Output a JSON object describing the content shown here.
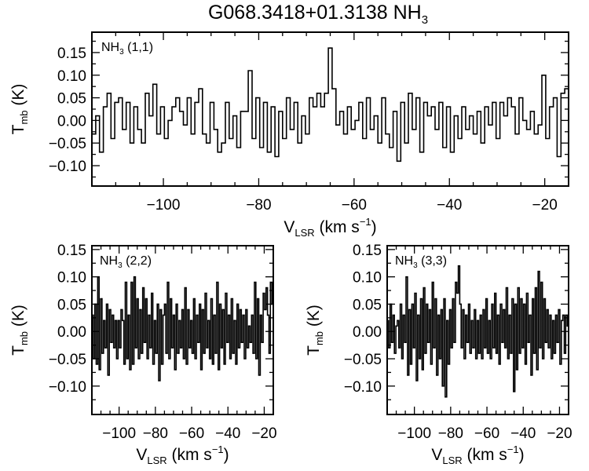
{
  "title": {
    "main": "G068.3418+01.3138 NH",
    "sub": "3"
  },
  "chart_data": [
    {
      "type": "line",
      "style": "histogram-step",
      "panel_label": {
        "main": "NH",
        "sub": "3",
        "rest": " (1,1)"
      },
      "xlabel": {
        "main": "V",
        "sub": "LSR",
        "rest": " (km s",
        "sup": "−1",
        "end": ")"
      },
      "ylabel": {
        "main": "T",
        "sub": "mb",
        "rest": " (K)"
      },
      "xlim": [
        -115,
        -15
      ],
      "ylim": [
        -0.145,
        0.195
      ],
      "xticks": [
        -100,
        -80,
        -60,
        -40,
        -20
      ],
      "xtick_labels": [
        "−100",
        "−80",
        "−60",
        "−40",
        "−20"
      ],
      "yticks": [
        0.15,
        0.1,
        0.05,
        0.0,
        -0.05,
        -0.1
      ],
      "ytick_labels": [
        "0.15",
        "0.10",
        "0.05",
        "0.00",
        "−0.05",
        "−0.10"
      ],
      "x_start": -115,
      "x_step": 0.8,
      "values": [
        -0.03,
        0.01,
        -0.07,
        0.03,
        0.06,
        -0.04,
        0.04,
        0.05,
        -0.02,
        0.04,
        -0.05,
        0.03,
        -0.02,
        -0.05,
        0.06,
        0.01,
        0.08,
        -0.03,
        0.03,
        -0.04,
        0.0,
        0.03,
        0.05,
        0.02,
        -0.01,
        0.05,
        -0.03,
        0.04,
        0.07,
        -0.03,
        -0.05,
        0.04,
        -0.02,
        -0.07,
        -0.05,
        0.04,
        -0.04,
        0.01,
        -0.06,
        0.02,
        0.02,
        0.11,
        -0.04,
        0.05,
        -0.06,
        0.04,
        -0.07,
        0.03,
        -0.08,
        0.02,
        -0.04,
        0.05,
        -0.02,
        0.04,
        -0.05,
        0.01,
        -0.03,
        0.05,
        0.03,
        0.06,
        0.03,
        0.06,
        0.16,
        0.07,
        -0.01,
        0.02,
        -0.03,
        0.03,
        -0.02,
        0.0,
        0.04,
        -0.04,
        0.05,
        -0.02,
        0.01,
        -0.05,
        0.05,
        -0.03,
        -0.06,
        0.02,
        -0.09,
        0.04,
        -0.05,
        0.06,
        -0.02,
        0.05,
        -0.07,
        0.04,
        0.01,
        0.03,
        -0.02,
        0.04,
        -0.06,
        0.03,
        -0.07,
        0.01,
        -0.04,
        0.03,
        -0.02,
        0.01,
        -0.03,
        0.02,
        -0.05,
        0.03,
        -0.01,
        0.04,
        -0.04,
        0.04,
        0.01,
        0.05,
        0.03,
        -0.03,
        0.05,
        0.0,
        -0.02,
        0.02,
        -0.03,
        -0.01,
        0.1,
        -0.04,
        0.03,
        0.05,
        -0.08,
        0.06,
        0.07,
        -0.01
      ]
    },
    {
      "type": "line",
      "style": "histogram-step",
      "panel_label": {
        "main": "NH",
        "sub": "3",
        "rest": " (2,2)"
      },
      "xlabel": {
        "main": "V",
        "sub": "LSR",
        "rest": " (km s",
        "sup": "−1",
        "end": ")"
      },
      "ylabel": {
        "main": "T",
        "sub": "mb",
        "rest": " (K)"
      },
      "xlim": [
        -115,
        -15
      ],
      "ylim": [
        -0.152,
        0.157
      ],
      "xticks": [
        -100,
        -80,
        -60,
        -40,
        -20
      ],
      "xtick_labels": [
        "−100",
        "−80",
        "−60",
        "−40",
        "−20"
      ],
      "yticks": [
        0.15,
        0.1,
        0.05,
        0.0,
        -0.05,
        -0.1
      ],
      "ytick_labels": [
        "0.15",
        "0.10",
        "0.05",
        "0.00",
        "−0.05",
        "−0.10"
      ],
      "x_start": -115,
      "x_step": 0.8,
      "values": [
        0.03,
        -0.05,
        0.05,
        -0.06,
        0.1,
        -0.07,
        0.06,
        -0.04,
        0.02,
        -0.03,
        0.05,
        -0.08,
        0.04,
        -0.02,
        0.03,
        -0.03,
        0.02,
        -0.05,
        0.02,
        -0.03,
        0.04,
        0.02,
        -0.06,
        0.09,
        -0.05,
        0.03,
        -0.07,
        0.09,
        -0.06,
        0.1,
        -0.03,
        0.06,
        -0.05,
        0.04,
        -0.04,
        0.08,
        -0.02,
        0.06,
        -0.05,
        0.03,
        -0.03,
        0.07,
        -0.06,
        0.02,
        -0.04,
        0.05,
        -0.09,
        0.04,
        -0.06,
        0.03,
        0.05,
        -0.04,
        0.09,
        -0.05,
        0.06,
        -0.03,
        0.03,
        -0.07,
        0.05,
        -0.04,
        0.02,
        -0.03,
        0.04,
        -0.05,
        0.08,
        -0.06,
        0.04,
        -0.03,
        0.02,
        -0.04,
        0.06,
        -0.05,
        0.03,
        -0.02,
        0.05,
        -0.07,
        0.04,
        -0.04,
        0.07,
        -0.03,
        0.02,
        -0.05,
        0.06,
        -0.06,
        0.03,
        -0.04,
        0.09,
        -0.07,
        0.05,
        -0.03,
        0.04,
        -0.06,
        0.07,
        -0.02,
        0.03,
        -0.05,
        0.06,
        -0.04,
        0.02,
        -0.06,
        0.05,
        -0.03,
        0.04,
        -0.02,
        0.03,
        -0.05,
        0.04,
        -0.03,
        0.01,
        -0.02,
        0.03,
        -0.04,
        0.09,
        -0.05,
        0.06,
        -0.08,
        0.03,
        -0.02,
        0.07,
        0.04,
        0.08,
        0.03,
        -0.04,
        0.09,
        0.05,
        -0.06
      ]
    },
    {
      "type": "line",
      "style": "histogram-step",
      "panel_label": {
        "main": "NH",
        "sub": "3",
        "rest": " (3,3)"
      },
      "xlabel": {
        "main": "V",
        "sub": "LSR",
        "rest": " (km s",
        "sup": "−1",
        "end": ")"
      },
      "ylabel": {
        "main": "T",
        "sub": "mb",
        "rest": " (K)"
      },
      "xlim": [
        -115,
        -15
      ],
      "ylim": [
        -0.152,
        0.157
      ],
      "xticks": [
        -100,
        -80,
        -60,
        -40,
        -20
      ],
      "xtick_labels": [
        "−100",
        "−80",
        "−60",
        "−40",
        "−20"
      ],
      "yticks": [
        0.15,
        0.1,
        0.05,
        0.0,
        -0.05,
        -0.1
      ],
      "ytick_labels": [
        "0.15",
        "0.10",
        "0.05",
        "0.00",
        "−0.05",
        "−0.10"
      ],
      "x_start": -115,
      "x_step": 0.8,
      "values": [
        0.02,
        -0.03,
        0.05,
        -0.02,
        0.03,
        -0.04,
        0.01,
        0.02,
        -0.03,
        0.05,
        -0.05,
        0.03,
        -0.02,
        0.1,
        -0.08,
        0.04,
        -0.06,
        0.05,
        -0.03,
        0.07,
        -0.09,
        0.03,
        -0.05,
        0.06,
        -0.07,
        0.08,
        -0.04,
        0.05,
        -0.02,
        0.04,
        -0.06,
        0.09,
        -0.03,
        0.06,
        -0.08,
        0.03,
        -0.05,
        0.04,
        -0.1,
        0.06,
        -0.12,
        0.02,
        -0.06,
        0.04,
        -0.03,
        0.06,
        -0.02,
        0.09,
        0.07,
        0.12,
        0.05,
        -0.03,
        0.04,
        -0.05,
        0.03,
        -0.02,
        0.05,
        -0.04,
        0.02,
        -0.03,
        0.04,
        -0.05,
        0.02,
        -0.04,
        0.03,
        -0.05,
        0.04,
        -0.03,
        0.06,
        -0.04,
        0.02,
        -0.05,
        0.05,
        -0.03,
        0.07,
        -0.04,
        0.03,
        -0.06,
        0.05,
        -0.02,
        0.04,
        -0.03,
        0.08,
        -0.05,
        0.03,
        -0.04,
        0.06,
        -0.11,
        0.05,
        -0.07,
        0.08,
        -0.04,
        0.06,
        -0.03,
        0.05,
        -0.06,
        0.07,
        -0.02,
        0.03,
        -0.08,
        0.06,
        -0.04,
        0.08,
        -0.07,
        0.11,
        -0.03,
        0.09,
        -0.05,
        0.06,
        -0.02,
        0.04,
        -0.03,
        0.03,
        -0.05,
        0.02,
        -0.04,
        0.03,
        -0.02,
        0.04,
        -0.06,
        0.02,
        0.03,
        -0.04,
        0.03,
        0.01,
        -0.05
      ]
    }
  ]
}
